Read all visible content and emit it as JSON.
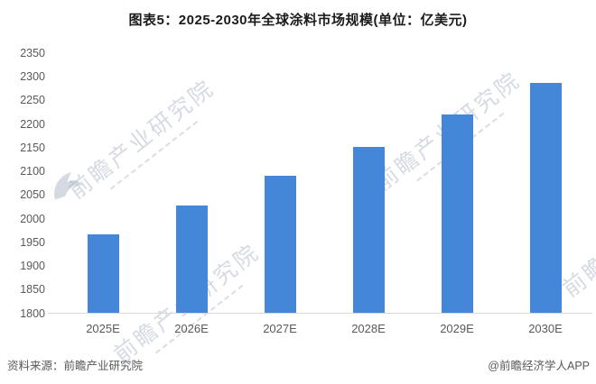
{
  "chart_data": {
    "type": "bar",
    "title": "图表5：2025-2030年全球涂料市场规模(单位：亿美元)",
    "categories": [
      "2025E",
      "2026E",
      "2027E",
      "2028E",
      "2029E",
      "2030E"
    ],
    "values": [
      1967,
      2028,
      2091,
      2152,
      2220,
      2287
    ],
    "xlabel": "",
    "ylabel": "",
    "ylim": [
      1800,
      2350
    ],
    "ytick_step": 50,
    "yticks": [
      1800,
      1850,
      1900,
      1950,
      2000,
      2050,
      2100,
      2150,
      2200,
      2250,
      2300,
      2350
    ],
    "grid": false,
    "legend": false,
    "bar_color": "#4486d8",
    "axis_color": "#d9d9d9",
    "tick_label_color": "#595959",
    "title_color": "#1b1b1b"
  },
  "watermark": {
    "text": "前瞻产业研究院"
  },
  "footer": {
    "source": "资料来源：前瞻产业研究院",
    "credit": "@前瞻经济学人APP"
  }
}
